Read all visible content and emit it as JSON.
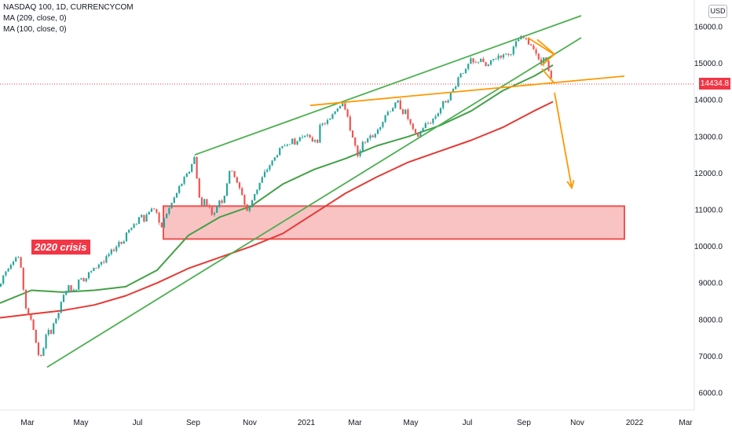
{
  "legend": {
    "symbol": "NASDAQ 100, 1D, CURRENCYCOM",
    "ma1": "MA (209, close, 0)",
    "ma2": "MA (100, close, 0)"
  },
  "currency_button": "USD",
  "last_price": "14434.8",
  "annotation": "2020 crisis",
  "colors": {
    "up": "#26a69a",
    "down": "#ef5350",
    "ma209": "#e53935",
    "ma100": "#43a047",
    "channel": "#4caf50",
    "trend": "#ff9800",
    "zone": "#f8b9b9",
    "badge": "#f23645"
  },
  "chart_data": {
    "type": "candlestick",
    "title": "NASDAQ 100, 1D, CURRENCYCOM",
    "x_ticks": [
      "Mar",
      "May",
      "Jul",
      "Sep",
      "Nov",
      "2021",
      "Mar",
      "May",
      "Jul",
      "Sep",
      "Nov",
      "2022",
      "Mar"
    ],
    "y_ticks": [
      "16000.0",
      "15000.0",
      "14000.0",
      "13000.0",
      "12000.0",
      "11000.0",
      "10000.0",
      "9000.0",
      "8000.0",
      "7000.0",
      "6000.0"
    ],
    "ylim": [
      5500,
      16700
    ],
    "close_path": [
      [
        0,
        8900
      ],
      [
        4,
        9200
      ],
      [
        8,
        9350
      ],
      [
        12,
        9500
      ],
      [
        16,
        9600
      ],
      [
        20,
        9700
      ],
      [
        24,
        9700
      ],
      [
        28,
        9200
      ],
      [
        32,
        8400
      ],
      [
        36,
        8100
      ],
      [
        40,
        8000
      ],
      [
        44,
        7600
      ],
      [
        48,
        7100
      ],
      [
        52,
        6950
      ],
      [
        56,
        7300
      ],
      [
        60,
        7700
      ],
      [
        64,
        7600
      ],
      [
        68,
        7900
      ],
      [
        72,
        8000
      ],
      [
        76,
        8300
      ],
      [
        80,
        8600
      ],
      [
        84,
        8800
      ],
      [
        88,
        8900
      ],
      [
        92,
        8750
      ],
      [
        96,
        8800
      ],
      [
        100,
        9100
      ],
      [
        104,
        9200
      ],
      [
        108,
        9050
      ],
      [
        112,
        9250
      ],
      [
        116,
        9300
      ],
      [
        120,
        9400
      ],
      [
        124,
        9450
      ],
      [
        128,
        9600
      ],
      [
        132,
        9550
      ],
      [
        136,
        9700
      ],
      [
        140,
        9800
      ],
      [
        144,
        9900
      ],
      [
        148,
        10000
      ],
      [
        152,
        10150
      ],
      [
        156,
        10050
      ],
      [
        160,
        10350
      ],
      [
        164,
        10450
      ],
      [
        168,
        10500
      ],
      [
        172,
        10600
      ],
      [
        176,
        10750
      ],
      [
        180,
        10900
      ],
      [
        184,
        10700
      ],
      [
        188,
        10950
      ],
      [
        192,
        11000
      ],
      [
        196,
        11050
      ],
      [
        200,
        10900
      ],
      [
        204,
        10400
      ],
      [
        208,
        10700
      ],
      [
        212,
        10900
      ],
      [
        216,
        11050
      ],
      [
        220,
        11250
      ],
      [
        224,
        11400
      ],
      [
        228,
        11600
      ],
      [
        232,
        11750
      ],
      [
        236,
        11900
      ],
      [
        240,
        12000
      ],
      [
        244,
        12250
      ],
      [
        248,
        12450
      ],
      [
        252,
        11600
      ],
      [
        256,
        11000
      ],
      [
        260,
        11300
      ],
      [
        264,
        11150
      ],
      [
        268,
        11000
      ],
      [
        272,
        10800
      ],
      [
        276,
        11100
      ],
      [
        280,
        11300
      ],
      [
        284,
        11200
      ],
      [
        288,
        11650
      ],
      [
        292,
        12000
      ],
      [
        296,
        12100
      ],
      [
        300,
        11800
      ],
      [
        304,
        11600
      ],
      [
        308,
        11450
      ],
      [
        312,
        11100
      ],
      [
        316,
        10900
      ],
      [
        320,
        11200
      ],
      [
        324,
        11450
      ],
      [
        328,
        11600
      ],
      [
        332,
        11800
      ],
      [
        336,
        11950
      ],
      [
        340,
        12100
      ],
      [
        344,
        12250
      ],
      [
        348,
        12350
      ],
      [
        352,
        12500
      ],
      [
        356,
        12650
      ],
      [
        360,
        12700
      ],
      [
        364,
        12800
      ],
      [
        368,
        12850
      ],
      [
        372,
        12900
      ],
      [
        376,
        12750
      ],
      [
        380,
        12950
      ],
      [
        384,
        13000
      ],
      [
        388,
        13100
      ],
      [
        392,
        13000
      ],
      [
        396,
        12850
      ],
      [
        400,
        12950
      ],
      [
        404,
        12900
      ],
      [
        408,
        13300
      ],
      [
        412,
        13350
      ],
      [
        416,
        13400
      ],
      [
        420,
        13450
      ],
      [
        424,
        13650
      ],
      [
        428,
        13750
      ],
      [
        432,
        13850
      ],
      [
        436,
        13950
      ],
      [
        440,
        13700
      ],
      [
        444,
        13350
      ],
      [
        448,
        13050
      ],
      [
        452,
        12750
      ],
      [
        456,
        12350
      ],
      [
        460,
        12700
      ],
      [
        464,
        12950
      ],
      [
        468,
        12850
      ],
      [
        472,
        13100
      ],
      [
        476,
        12950
      ],
      [
        480,
        13150
      ],
      [
        484,
        13300
      ],
      [
        488,
        13500
      ],
      [
        492,
        13650
      ],
      [
        496,
        13700
      ],
      [
        500,
        13800
      ],
      [
        504,
        13900
      ],
      [
        508,
        13950
      ],
      [
        512,
        13650
      ],
      [
        516,
        13700
      ],
      [
        520,
        13450
      ],
      [
        524,
        13250
      ],
      [
        528,
        13050
      ],
      [
        532,
        13000
      ],
      [
        536,
        13150
      ],
      [
        540,
        13300
      ],
      [
        544,
        13350
      ],
      [
        548,
        13400
      ],
      [
        552,
        13500
      ],
      [
        556,
        13600
      ],
      [
        560,
        13750
      ],
      [
        564,
        13900
      ],
      [
        568,
        14000
      ],
      [
        572,
        14100
      ],
      [
        576,
        14250
      ],
      [
        580,
        14400
      ],
      [
        584,
        14650
      ],
      [
        588,
        14800
      ],
      [
        592,
        14750
      ],
      [
        596,
        14950
      ],
      [
        600,
        15100
      ],
      [
        604,
        14950
      ],
      [
        608,
        15050
      ],
      [
        612,
        15150
      ],
      [
        616,
        14950
      ],
      [
        620,
        14900
      ],
      [
        624,
        15000
      ],
      [
        628,
        15100
      ],
      [
        632,
        15150
      ],
      [
        636,
        15250
      ],
      [
        640,
        15150
      ],
      [
        644,
        15300
      ],
      [
        648,
        15200
      ],
      [
        652,
        15350
      ],
      [
        656,
        15500
      ],
      [
        660,
        15650
      ],
      [
        664,
        15700
      ],
      [
        668,
        15680
      ],
      [
        672,
        15550
      ],
      [
        676,
        15500
      ],
      [
        680,
        15450
      ],
      [
        684,
        15200
      ],
      [
        688,
        14900
      ],
      [
        692,
        15250
      ],
      [
        696,
        15000
      ],
      [
        700,
        14650
      ],
      [
        704,
        14434.8
      ]
    ],
    "ma209_path": [
      [
        0,
        8050
      ],
      [
        40,
        8150
      ],
      [
        80,
        8250
      ],
      [
        120,
        8400
      ],
      [
        160,
        8650
      ],
      [
        200,
        9000
      ],
      [
        240,
        9400
      ],
      [
        280,
        9700
      ],
      [
        320,
        10000
      ],
      [
        360,
        10350
      ],
      [
        400,
        10900
      ],
      [
        440,
        11450
      ],
      [
        480,
        11900
      ],
      [
        520,
        12300
      ],
      [
        560,
        12600
      ],
      [
        600,
        12900
      ],
      [
        640,
        13250
      ],
      [
        680,
        13700
      ],
      [
        704,
        13950
      ]
    ],
    "ma100_path": [
      [
        0,
        8450
      ],
      [
        40,
        8800
      ],
      [
        80,
        8750
      ],
      [
        120,
        8800
      ],
      [
        160,
        8900
      ],
      [
        200,
        9350
      ],
      [
        240,
        10300
      ],
      [
        280,
        10800
      ],
      [
        320,
        11100
      ],
      [
        360,
        11700
      ],
      [
        400,
        12100
      ],
      [
        440,
        12400
      ],
      [
        480,
        12750
      ],
      [
        520,
        13000
      ],
      [
        560,
        13300
      ],
      [
        600,
        13700
      ],
      [
        640,
        14250
      ],
      [
        680,
        14650
      ],
      [
        704,
        14950
      ]
    ],
    "channel_lines": [
      {
        "from": [
          248,
          12500
        ],
        "to": [
          740,
          16300
        ]
      },
      {
        "from": [
          60,
          6700
        ],
        "to": [
          740,
          15700
        ]
      }
    ],
    "trend_lines": [
      {
        "from": [
          395,
          13850
        ],
        "to": [
          705,
          14450
        ],
        "extend_to": [
          795,
          14650
        ]
      },
      {
        "from": [
          672,
          15700
        ],
        "to": [
          705,
          15250
        ]
      },
      {
        "from": [
          690,
          14850
        ],
        "to": [
          706,
          14450
        ]
      }
    ],
    "forecast_arrow": {
      "from": [
        706,
        14200
      ],
      "to": [
        728,
        11600
      ]
    },
    "support_zone": {
      "x_from": 208,
      "x_to": 795,
      "y_low": 10200,
      "y_high": 11100
    },
    "last_close": 14434.8
  }
}
